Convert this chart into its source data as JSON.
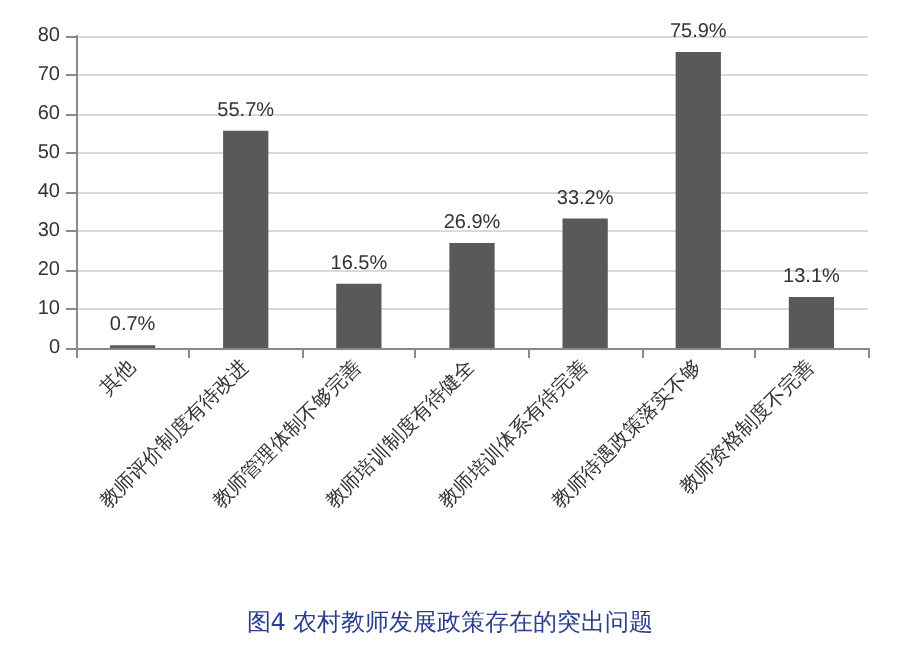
{
  "chart_data": {
    "type": "bar",
    "title": "图4 农村教师发展政策存在的突出问题",
    "categories": [
      "其他",
      "教师评价制度有待改进",
      "教师管理体制不够完善",
      "教师培训制度有待健全",
      "教师培训体系有待完善",
      "教师待遇政策落实不够",
      "教师资格制度不完善"
    ],
    "values": [
      0.7,
      55.7,
      16.5,
      26.9,
      33.2,
      75.9,
      13.1
    ],
    "value_labels": [
      "0.7%",
      "55.7%",
      "16.5%",
      "26.9%",
      "33.2%",
      "75.9%",
      "13.1%"
    ],
    "color": "#595959",
    "ylim": [
      0,
      80
    ],
    "yticks": [
      0,
      10,
      20,
      30,
      40,
      50,
      60,
      70,
      80
    ],
    "grid": "y"
  }
}
